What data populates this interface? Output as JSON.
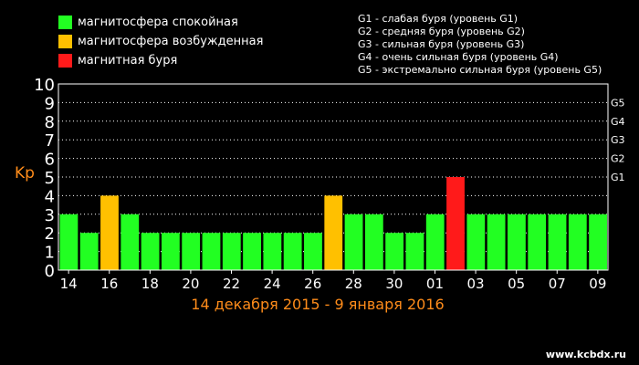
{
  "legend": [
    {
      "label": "магнитосфера спокойная",
      "color": "#22ff22"
    },
    {
      "label": "магнитосфера возбужденная",
      "color": "#ffc000"
    },
    {
      "label": "магнитная буря",
      "color": "#ff1a1a"
    }
  ],
  "storm_levels": [
    "G1 - слабая буря (уровень G1)",
    "G2 - средняя буря (уровень G2)",
    "G3 - сильная буря (уровень G3)",
    "G4 - очень сильная буря (уровень G4)",
    "G5 - экстремально сильная буря (уровень G5)"
  ],
  "period_label": "14 декабря 2015 - 9 января 2016",
  "watermark": "www.kcbdx.ru",
  "chart_data": {
    "type": "bar",
    "ylabel": "Kp",
    "ylim": [
      0,
      10
    ],
    "yticks": [
      "0",
      "1",
      "2",
      "3",
      "4",
      "5",
      "6",
      "7",
      "8",
      "9",
      "10"
    ],
    "right_ticks": [
      {
        "label": "G1",
        "value": 5
      },
      {
        "label": "G2",
        "value": 6
      },
      {
        "label": "G3",
        "value": 7
      },
      {
        "label": "G4",
        "value": 8
      },
      {
        "label": "G5",
        "value": 9
      }
    ],
    "categories": [
      "14",
      "15",
      "16",
      "17",
      "18",
      "19",
      "20",
      "21",
      "22",
      "23",
      "24",
      "25",
      "26",
      "27",
      "28",
      "29",
      "30",
      "31",
      "01",
      "02",
      "03",
      "04",
      "05",
      "06",
      "07",
      "08",
      "09"
    ],
    "xtick_labels": [
      "14",
      "16",
      "18",
      "20",
      "22",
      "24",
      "26",
      "28",
      "30",
      "01",
      "03",
      "05",
      "07",
      "09"
    ],
    "values": [
      3,
      2,
      4,
      3,
      2,
      2,
      2,
      2,
      2,
      2,
      2,
      2,
      2,
      4,
      3,
      3,
      2,
      2,
      3,
      5,
      3,
      3,
      3,
      3,
      3,
      3,
      3
    ],
    "bar_status": [
      "quiet",
      "quiet",
      "active",
      "quiet",
      "quiet",
      "quiet",
      "quiet",
      "quiet",
      "quiet",
      "quiet",
      "quiet",
      "quiet",
      "quiet",
      "active",
      "quiet",
      "quiet",
      "quiet",
      "quiet",
      "quiet",
      "storm",
      "quiet",
      "quiet",
      "quiet",
      "quiet",
      "quiet",
      "quiet",
      "quiet"
    ],
    "status_colors": {
      "quiet": "#22ff22",
      "active": "#ffc000",
      "storm": "#ff1a1a"
    },
    "grid": true,
    "legend_position": "top-left"
  }
}
